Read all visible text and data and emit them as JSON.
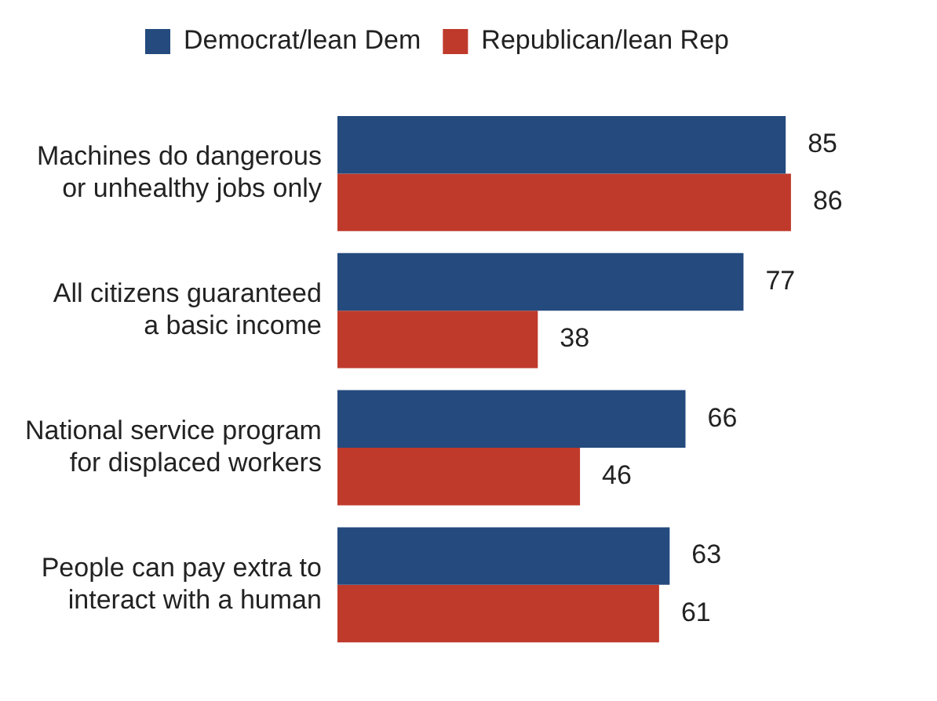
{
  "chart_data": {
    "type": "bar",
    "orientation": "horizontal",
    "categories": [
      "Machines do dangerous or unhealthy jobs only",
      "All citizens guaranteed a basic income",
      "National service program for displaced workers",
      "People can pay extra to interact with a human"
    ],
    "series": [
      {
        "name": "Democrat/lean Dem",
        "color": "#244a7e",
        "values": [
          85,
          77,
          66,
          63
        ]
      },
      {
        "name": "Republican/lean Rep",
        "color": "#bf3a2b",
        "values": [
          86,
          38,
          46,
          61
        ]
      }
    ],
    "data_labels": true,
    "legend": "top",
    "grid": false
  }
}
